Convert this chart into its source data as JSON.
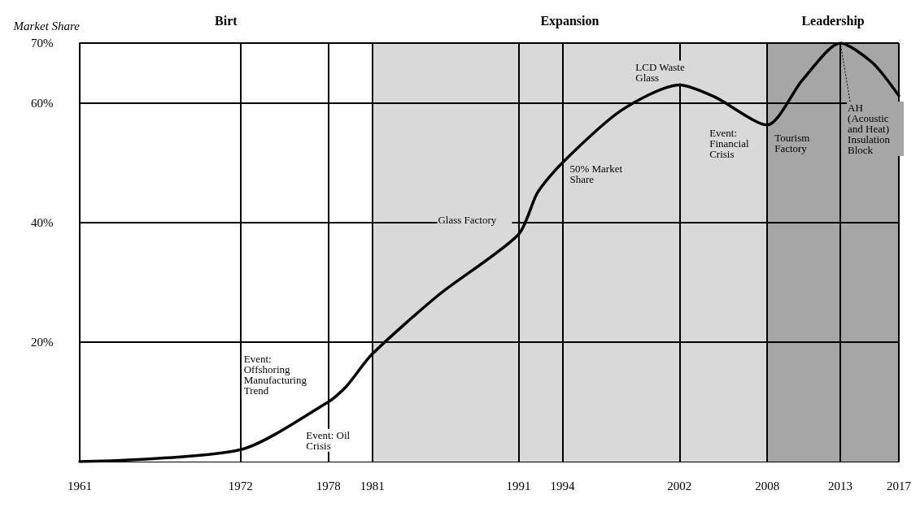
{
  "chart_data": {
    "type": "line",
    "ylabel": "Market Share",
    "x": [
      1961,
      1972,
      1978,
      1979.2,
      1981,
      1985.6,
      1991,
      1992.3,
      1994,
      1998,
      2002,
      2004.4,
      2008,
      2010.4,
      2013,
      2015.2,
      2017
    ],
    "series": [
      {
        "color": "#000000",
        "values": [
          0,
          2,
          10,
          12.5,
          18,
          28,
          38,
          45,
          50,
          58.7,
          63,
          61,
          56.3,
          63.8,
          70,
          66.7,
          61.2
        ]
      }
    ],
    "xlim": [
      1961,
      2017
    ],
    "xticks": [
      1961,
      1972,
      1978,
      1981,
      1991,
      1994,
      2002,
      2008,
      2013,
      2017
    ],
    "ylim": [
      0,
      70
    ],
    "yticks": [
      {
        "value": 20,
        "label": "20%"
      },
      {
        "value": 40,
        "label": "40%"
      },
      {
        "value": 60,
        "label": "60%"
      },
      {
        "value": 70,
        "label": "70%"
      }
    ],
    "grid": true,
    "marker": "none",
    "line_style": "solid",
    "bands": [
      {
        "axis": "x",
        "from": 1961,
        "to": 1981,
        "label": "Birt",
        "color": "#ffffff"
      },
      {
        "axis": "x",
        "from": 1981,
        "to": 2008,
        "label": "Expansion",
        "color": "#d9d9d9"
      },
      {
        "axis": "x",
        "from": 2008,
        "to": 2017,
        "label": "Leadership",
        "color": "#a6a6a6"
      }
    ],
    "annotations": [
      {
        "text": "Event: Offshoring Manufacturing Trend",
        "x": 1978,
        "y": 10
      },
      {
        "text": "Event: Oil Crisis",
        "x": 1975.2,
        "y": 6
      },
      {
        "text": "Glass Factory",
        "x": 1991,
        "y": 38
      },
      {
        "text": "50% Market Share",
        "x": 1994,
        "y": 50
      },
      {
        "text": "LCD Waste Glass",
        "x": 2002,
        "y": 63
      },
      {
        "text": "Event: Financial Crisis",
        "x": 2008,
        "y": 56.3
      },
      {
        "text": "Tourism Factory",
        "x": 2008,
        "y": 56.3
      },
      {
        "text": "AH (Acoustic and Heat) Insulation Block",
        "x": 2013,
        "y": 70
      }
    ]
  }
}
